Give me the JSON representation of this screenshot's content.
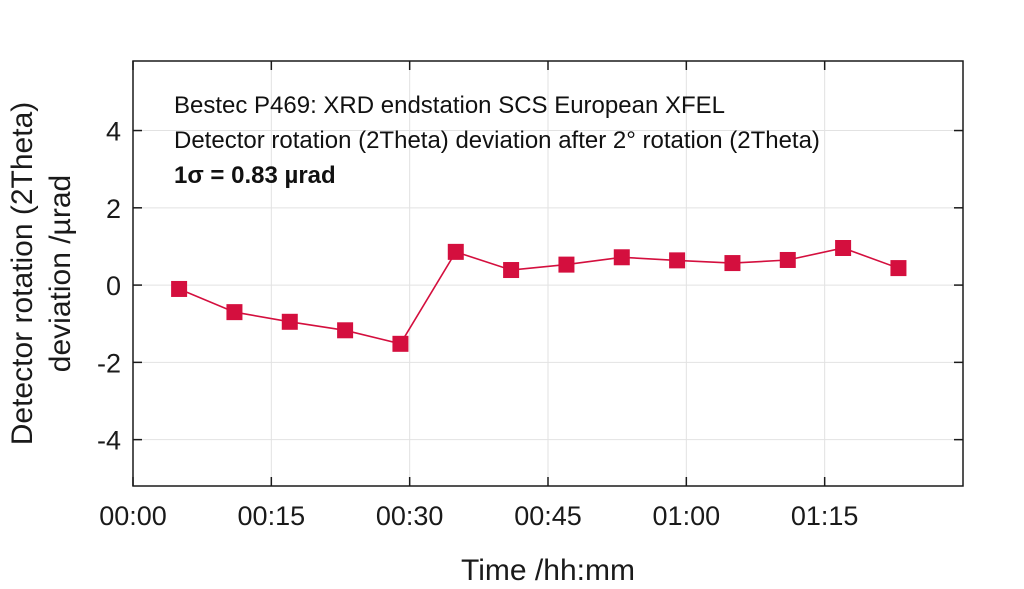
{
  "chart_data": {
    "type": "line",
    "title": "",
    "xlabel": "Time /hh:mm",
    "ylabel_line1": "Detector rotation (2Theta)",
    "ylabel_line2": "deviation /µrad",
    "xlim": [
      0,
      90
    ],
    "ylim": [
      -5.2,
      5.8
    ],
    "x_ticks": [
      {
        "value": 0,
        "label": "00:00"
      },
      {
        "value": 15,
        "label": "00:15"
      },
      {
        "value": 30,
        "label": "00:30"
      },
      {
        "value": 45,
        "label": "00:45"
      },
      {
        "value": 60,
        "label": "01:00"
      },
      {
        "value": 75,
        "label": "01:15"
      }
    ],
    "y_ticks": [
      {
        "value": -4,
        "label": "-4"
      },
      {
        "value": -2,
        "label": "-2"
      },
      {
        "value": 0,
        "label": "0"
      },
      {
        "value": 2,
        "label": "2"
      },
      {
        "value": 4,
        "label": "4"
      }
    ],
    "grid": true,
    "annotations": [
      {
        "text": "Bestec P469: XRD endstation SCS European XFEL",
        "bold": false
      },
      {
        "text": "Detector rotation (2Theta) deviation after 2° rotation (2Theta)",
        "bold": false
      },
      {
        "text": "1σ = 0.83 µrad",
        "bold": true
      }
    ],
    "series": [
      {
        "color": "#d40f3e",
        "marker": "square",
        "x": [
          5,
          11,
          17,
          23,
          29,
          35,
          41,
          47,
          53,
          59,
          65,
          71,
          77,
          83
        ],
        "y": [
          -0.1,
          -0.7,
          -0.95,
          -1.17,
          -1.52,
          0.86,
          0.39,
          0.53,
          0.72,
          0.64,
          0.57,
          0.65,
          0.96,
          0.44
        ]
      }
    ]
  }
}
